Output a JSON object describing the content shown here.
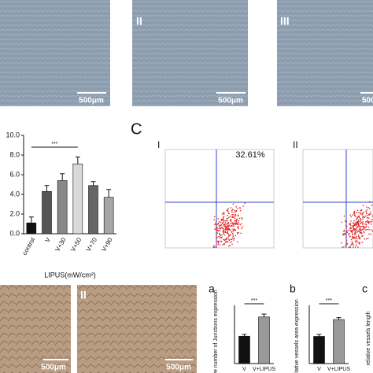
{
  "chart_data": [
    {
      "type": "bar",
      "categories": [
        "control",
        "V",
        "V+30",
        "V+50",
        "V+70",
        "V+90"
      ],
      "values": [
        1.1,
        4.3,
        5.4,
        7.1,
        4.9,
        3.7
      ],
      "errors": [
        0.6,
        0.6,
        0.7,
        0.7,
        0.4,
        0.8
      ],
      "colors": [
        "#111111",
        "#555555",
        "#888888",
        "#d9d9d9",
        "#666666",
        "#a6a6a6"
      ],
      "ylim": [
        0,
        10
      ],
      "yticks": [
        {
          "value": 0,
          "label": "0.0"
        },
        {
          "value": 2,
          "label": "2.0"
        },
        {
          "value": 4,
          "label": "4.0"
        },
        {
          "value": 6,
          "label": "6.0"
        },
        {
          "value": 8,
          "label": "8.0"
        },
        {
          "value": 10,
          "label": "10.0"
        }
      ],
      "xlabel": "LIPUS(mW/cm²)",
      "annotation": "***"
    },
    {
      "type": "bar",
      "panel": "a",
      "categories": [
        "V",
        "V+LIPUS"
      ],
      "values": [
        470,
        800
      ],
      "errors": [
        30,
        50
      ],
      "colors": [
        "#111111",
        "#999999"
      ],
      "ylim": [
        0,
        1000
      ],
      "ylabel": "relative number of Junctions expression",
      "annotation": "***"
    },
    {
      "type": "bar",
      "panel": "b",
      "categories": [
        "V",
        "V+LIPUS"
      ],
      "values": [
        21,
        34
      ],
      "errors": [
        1.5,
        1.5
      ],
      "colors": [
        "#111111",
        "#999999"
      ],
      "ylim": [
        0,
        45
      ],
      "ylabel": "relative vessels area expression",
      "annotation": "***"
    }
  ],
  "images": {
    "top_labels": [
      "II",
      "III"
    ],
    "scale": "500μm",
    "bottom_label": "II"
  },
  "panel_C": {
    "letter": "C",
    "plot_labels": [
      "I",
      "II"
    ],
    "percent": "32.61%"
  },
  "panel_c": {
    "letter": "c",
    "ylabel": "relative vessels length"
  }
}
